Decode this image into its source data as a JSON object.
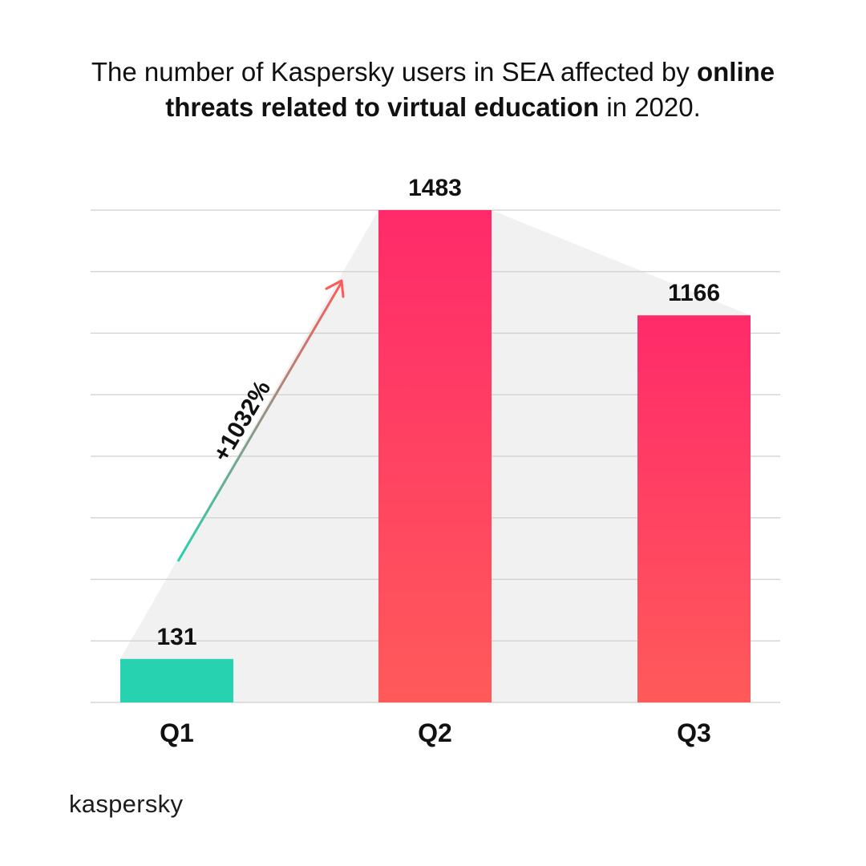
{
  "chart_data": {
    "type": "bar",
    "title_parts": {
      "pre": "The number of Kaspersky users in SEA affected by ",
      "bold": "online threats related to virtual education",
      "post": " in 2020."
    },
    "categories": [
      "Q1",
      "Q2",
      "Q3"
    ],
    "values": [
      131,
      1483,
      1166
    ],
    "value_labels": [
      "131",
      "1483",
      "1166"
    ],
    "annotation": "+1032%",
    "xlabel": "",
    "ylabel": "",
    "ylim": [
      0,
      1600
    ],
    "grid": true,
    "colors": {
      "q1": "#26d2b0",
      "bar_top": "#ff2a6a",
      "bar_bottom": "#ff5a5a",
      "arrow_start": "#26d2b0",
      "arrow_end": "#ff5a5a",
      "area": "#f1f1f1",
      "grid": "#cfcfcf"
    }
  },
  "brand": {
    "name": "kaspersky"
  }
}
